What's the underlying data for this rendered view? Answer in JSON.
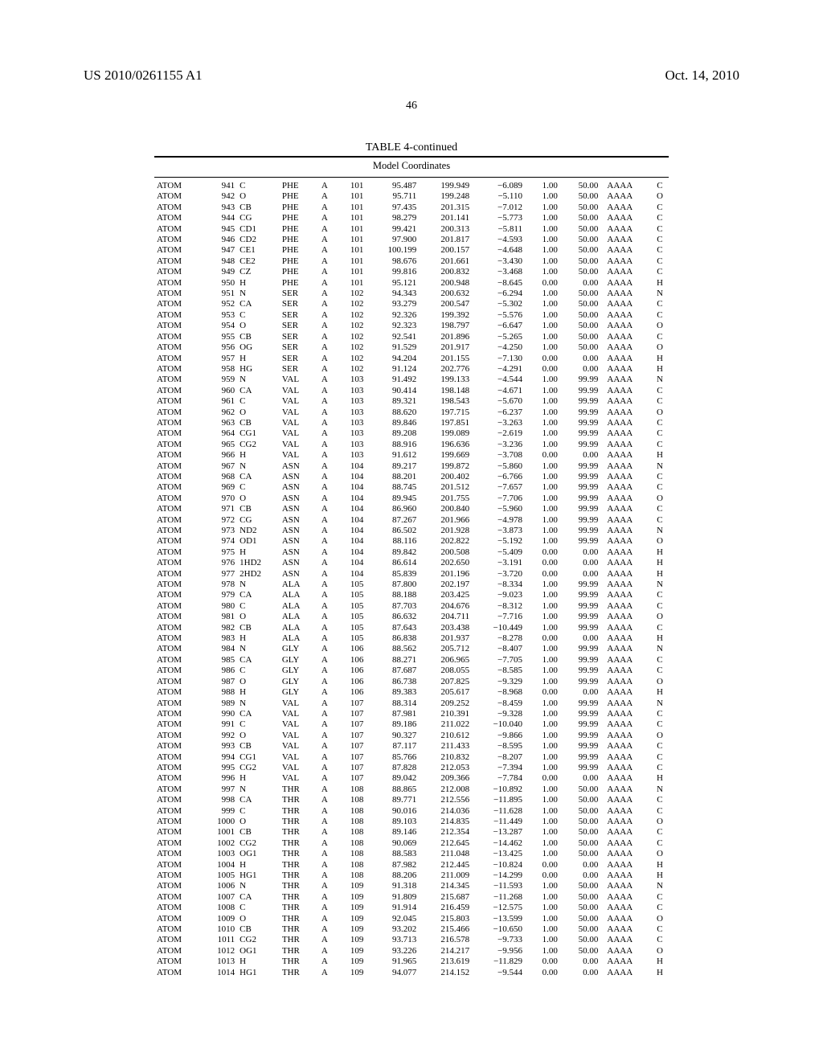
{
  "header": {
    "left": "US 2010/0261155 A1",
    "right": "Oct. 14, 2010"
  },
  "page_number": "46",
  "title": "TABLE 4-continued",
  "subtitle": "Model Coordinates",
  "table": {
    "columns": [
      "record",
      "serial",
      "atom",
      "res",
      "chain",
      "resSeq",
      "x",
      "y",
      "z",
      "occ",
      "temp",
      "seg",
      "elem"
    ],
    "col_classes": [
      "c0",
      "c1",
      "c2",
      "c3",
      "c4",
      "c5",
      "c6",
      "c7",
      "c8",
      "c9",
      "c10",
      "c11",
      "c12"
    ],
    "rows": [
      [
        "ATOM",
        "941",
        "C",
        "PHE",
        "A",
        "101",
        "95.487",
        "199.949",
        "−6.089",
        "1.00",
        "50.00",
        "AAAA",
        "C"
      ],
      [
        "ATOM",
        "942",
        "O",
        "PHE",
        "A",
        "101",
        "95.711",
        "199.248",
        "−5.110",
        "1.00",
        "50.00",
        "AAAA",
        "O"
      ],
      [
        "ATOM",
        "943",
        "CB",
        "PHE",
        "A",
        "101",
        "97.435",
        "201.315",
        "−7.012",
        "1.00",
        "50.00",
        "AAAA",
        "C"
      ],
      [
        "ATOM",
        "944",
        "CG",
        "PHE",
        "A",
        "101",
        "98.279",
        "201.141",
        "−5.773",
        "1.00",
        "50.00",
        "AAAA",
        "C"
      ],
      [
        "ATOM",
        "945",
        "CD1",
        "PHE",
        "A",
        "101",
        "99.421",
        "200.313",
        "−5.811",
        "1.00",
        "50.00",
        "AAAA",
        "C"
      ],
      [
        "ATOM",
        "946",
        "CD2",
        "PHE",
        "A",
        "101",
        "97.900",
        "201.817",
        "−4.593",
        "1.00",
        "50.00",
        "AAAA",
        "C"
      ],
      [
        "ATOM",
        "947",
        "CE1",
        "PHE",
        "A",
        "101",
        "100.199",
        "200.157",
        "−4.648",
        "1.00",
        "50.00",
        "AAAA",
        "C"
      ],
      [
        "ATOM",
        "948",
        "CE2",
        "PHE",
        "A",
        "101",
        "98.676",
        "201.661",
        "−3.430",
        "1.00",
        "50.00",
        "AAAA",
        "C"
      ],
      [
        "ATOM",
        "949",
        "CZ",
        "PHE",
        "A",
        "101",
        "99.816",
        "200.832",
        "−3.468",
        "1.00",
        "50.00",
        "AAAA",
        "C"
      ],
      [
        "ATOM",
        "950",
        "H",
        "PHE",
        "A",
        "101",
        "95.121",
        "200.948",
        "−8.645",
        "0.00",
        "0.00",
        "AAAA",
        "H"
      ],
      [
        "ATOM",
        "951",
        "N",
        "SER",
        "A",
        "102",
        "94.343",
        "200.632",
        "−6.294",
        "1.00",
        "50.00",
        "AAAA",
        "N"
      ],
      [
        "ATOM",
        "952",
        "CA",
        "SER",
        "A",
        "102",
        "93.279",
        "200.547",
        "−5.302",
        "1.00",
        "50.00",
        "AAAA",
        "C"
      ],
      [
        "ATOM",
        "953",
        "C",
        "SER",
        "A",
        "102",
        "92.326",
        "199.392",
        "−5.576",
        "1.00",
        "50.00",
        "AAAA",
        "C"
      ],
      [
        "ATOM",
        "954",
        "O",
        "SER",
        "A",
        "102",
        "92.323",
        "198.797",
        "−6.647",
        "1.00",
        "50.00",
        "AAAA",
        "O"
      ],
      [
        "ATOM",
        "955",
        "CB",
        "SER",
        "A",
        "102",
        "92.541",
        "201.896",
        "−5.265",
        "1.00",
        "50.00",
        "AAAA",
        "C"
      ],
      [
        "ATOM",
        "956",
        "OG",
        "SER",
        "A",
        "102",
        "91.529",
        "201.917",
        "−4.250",
        "1.00",
        "50.00",
        "AAAA",
        "O"
      ],
      [
        "ATOM",
        "957",
        "H",
        "SER",
        "A",
        "102",
        "94.204",
        "201.155",
        "−7.130",
        "0.00",
        "0.00",
        "AAAA",
        "H"
      ],
      [
        "ATOM",
        "958",
        "HG",
        "SER",
        "A",
        "102",
        "91.124",
        "202.776",
        "−4.291",
        "0.00",
        "0.00",
        "AAAA",
        "H"
      ],
      [
        "ATOM",
        "959",
        "N",
        "VAL",
        "A",
        "103",
        "91.492",
        "199.133",
        "−4.544",
        "1.00",
        "99.99",
        "AAAA",
        "N"
      ],
      [
        "ATOM",
        "960",
        "CA",
        "VAL",
        "A",
        "103",
        "90.414",
        "198.148",
        "−4.671",
        "1.00",
        "99.99",
        "AAAA",
        "C"
      ],
      [
        "ATOM",
        "961",
        "C",
        "VAL",
        "A",
        "103",
        "89.321",
        "198.543",
        "−5.670",
        "1.00",
        "99.99",
        "AAAA",
        "C"
      ],
      [
        "ATOM",
        "962",
        "O",
        "VAL",
        "A",
        "103",
        "88.620",
        "197.715",
        "−6.237",
        "1.00",
        "99.99",
        "AAAA",
        "O"
      ],
      [
        "ATOM",
        "963",
        "CB",
        "VAL",
        "A",
        "103",
        "89.846",
        "197.851",
        "−3.263",
        "1.00",
        "99.99",
        "AAAA",
        "C"
      ],
      [
        "ATOM",
        "964",
        "CG1",
        "VAL",
        "A",
        "103",
        "89.208",
        "199.089",
        "−2.619",
        "1.00",
        "99.99",
        "AAAA",
        "C"
      ],
      [
        "ATOM",
        "965",
        "CG2",
        "VAL",
        "A",
        "103",
        "88.916",
        "196.636",
        "−3.236",
        "1.00",
        "99.99",
        "AAAA",
        "C"
      ],
      [
        "ATOM",
        "966",
        "H",
        "VAL",
        "A",
        "103",
        "91.612",
        "199.669",
        "−3.708",
        "0.00",
        "0.00",
        "AAAA",
        "H"
      ],
      [
        "ATOM",
        "967",
        "N",
        "ASN",
        "A",
        "104",
        "89.217",
        "199.872",
        "−5.860",
        "1.00",
        "99.99",
        "AAAA",
        "N"
      ],
      [
        "ATOM",
        "968",
        "CA",
        "ASN",
        "A",
        "104",
        "88.201",
        "200.402",
        "−6.766",
        "1.00",
        "99.99",
        "AAAA",
        "C"
      ],
      [
        "ATOM",
        "969",
        "C",
        "ASN",
        "A",
        "104",
        "88.745",
        "201.512",
        "−7.657",
        "1.00",
        "99.99",
        "AAAA",
        "C"
      ],
      [
        "ATOM",
        "970",
        "O",
        "ASN",
        "A",
        "104",
        "89.945",
        "201.755",
        "−7.706",
        "1.00",
        "99.99",
        "AAAA",
        "O"
      ],
      [
        "ATOM",
        "971",
        "CB",
        "ASN",
        "A",
        "104",
        "86.960",
        "200.840",
        "−5.960",
        "1.00",
        "99.99",
        "AAAA",
        "C"
      ],
      [
        "ATOM",
        "972",
        "CG",
        "ASN",
        "A",
        "104",
        "87.267",
        "201.966",
        "−4.978",
        "1.00",
        "99.99",
        "AAAA",
        "C"
      ],
      [
        "ATOM",
        "973",
        "ND2",
        "ASN",
        "A",
        "104",
        "86.502",
        "201.928",
        "−3.873",
        "1.00",
        "99.99",
        "AAAA",
        "N"
      ],
      [
        "ATOM",
        "974",
        "OD1",
        "ASN",
        "A",
        "104",
        "88.116",
        "202.822",
        "−5.192",
        "1.00",
        "99.99",
        "AAAA",
        "O"
      ],
      [
        "ATOM",
        "975",
        "H",
        "ASN",
        "A",
        "104",
        "89.842",
        "200.508",
        "−5.409",
        "0.00",
        "0.00",
        "AAAA",
        "H"
      ],
      [
        "ATOM",
        "976",
        "1HD2",
        "ASN",
        "A",
        "104",
        "86.614",
        "202.650",
        "−3.191",
        "0.00",
        "0.00",
        "AAAA",
        "H"
      ],
      [
        "ATOM",
        "977",
        "2HD2",
        "ASN",
        "A",
        "104",
        "85.839",
        "201.196",
        "−3.720",
        "0.00",
        "0.00",
        "AAAA",
        "H"
      ],
      [
        "ATOM",
        "978",
        "N",
        "ALA",
        "A",
        "105",
        "87.800",
        "202.197",
        "−8.334",
        "1.00",
        "99.99",
        "AAAA",
        "N"
      ],
      [
        "ATOM",
        "979",
        "CA",
        "ALA",
        "A",
        "105",
        "88.188",
        "203.425",
        "−9.023",
        "1.00",
        "99.99",
        "AAAA",
        "C"
      ],
      [
        "ATOM",
        "980",
        "C",
        "ALA",
        "A",
        "105",
        "87.703",
        "204.676",
        "−8.312",
        "1.00",
        "99.99",
        "AAAA",
        "C"
      ],
      [
        "ATOM",
        "981",
        "O",
        "ALA",
        "A",
        "105",
        "86.632",
        "204.711",
        "−7.716",
        "1.00",
        "99.99",
        "AAAA",
        "O"
      ],
      [
        "ATOM",
        "982",
        "CB",
        "ALA",
        "A",
        "105",
        "87.643",
        "203.438",
        "−10.449",
        "1.00",
        "99.99",
        "AAAA",
        "C"
      ],
      [
        "ATOM",
        "983",
        "H",
        "ALA",
        "A",
        "105",
        "86.838",
        "201.937",
        "−8.278",
        "0.00",
        "0.00",
        "AAAA",
        "H"
      ],
      [
        "ATOM",
        "984",
        "N",
        "GLY",
        "A",
        "106",
        "88.562",
        "205.712",
        "−8.407",
        "1.00",
        "99.99",
        "AAAA",
        "N"
      ],
      [
        "ATOM",
        "985",
        "CA",
        "GLY",
        "A",
        "106",
        "88.271",
        "206.965",
        "−7.705",
        "1.00",
        "99.99",
        "AAAA",
        "C"
      ],
      [
        "ATOM",
        "986",
        "C",
        "GLY",
        "A",
        "106",
        "87.687",
        "208.055",
        "−8.585",
        "1.00",
        "99.99",
        "AAAA",
        "C"
      ],
      [
        "ATOM",
        "987",
        "O",
        "GLY",
        "A",
        "106",
        "86.738",
        "207.825",
        "−9.329",
        "1.00",
        "99.99",
        "AAAA",
        "O"
      ],
      [
        "ATOM",
        "988",
        "H",
        "GLY",
        "A",
        "106",
        "89.383",
        "205.617",
        "−8.968",
        "0.00",
        "0.00",
        "AAAA",
        "H"
      ],
      [
        "ATOM",
        "989",
        "N",
        "VAL",
        "A",
        "107",
        "88.314",
        "209.252",
        "−8.459",
        "1.00",
        "99.99",
        "AAAA",
        "N"
      ],
      [
        "ATOM",
        "990",
        "CA",
        "VAL",
        "A",
        "107",
        "87.981",
        "210.391",
        "−9.328",
        "1.00",
        "99.99",
        "AAAA",
        "C"
      ],
      [
        "ATOM",
        "991",
        "C",
        "VAL",
        "A",
        "107",
        "89.186",
        "211.022",
        "−10.040",
        "1.00",
        "99.99",
        "AAAA",
        "C"
      ],
      [
        "ATOM",
        "992",
        "O",
        "VAL",
        "A",
        "107",
        "90.327",
        "210.612",
        "−9.866",
        "1.00",
        "99.99",
        "AAAA",
        "O"
      ],
      [
        "ATOM",
        "993",
        "CB",
        "VAL",
        "A",
        "107",
        "87.117",
        "211.433",
        "−8.595",
        "1.00",
        "99.99",
        "AAAA",
        "C"
      ],
      [
        "ATOM",
        "994",
        "CG1",
        "VAL",
        "A",
        "107",
        "85.766",
        "210.832",
        "−8.207",
        "1.00",
        "99.99",
        "AAAA",
        "C"
      ],
      [
        "ATOM",
        "995",
        "CG2",
        "VAL",
        "A",
        "107",
        "87.828",
        "212.053",
        "−7.394",
        "1.00",
        "99.99",
        "AAAA",
        "C"
      ],
      [
        "ATOM",
        "996",
        "H",
        "VAL",
        "A",
        "107",
        "89.042",
        "209.366",
        "−7.784",
        "0.00",
        "0.00",
        "AAAA",
        "H"
      ],
      [
        "ATOM",
        "997",
        "N",
        "THR",
        "A",
        "108",
        "88.865",
        "212.008",
        "−10.892",
        "1.00",
        "50.00",
        "AAAA",
        "N"
      ],
      [
        "ATOM",
        "998",
        "CA",
        "THR",
        "A",
        "108",
        "89.771",
        "212.556",
        "−11.895",
        "1.00",
        "50.00",
        "AAAA",
        "C"
      ],
      [
        "ATOM",
        "999",
        "C",
        "THR",
        "A",
        "108",
        "90.016",
        "214.036",
        "−11.628",
        "1.00",
        "50.00",
        "AAAA",
        "C"
      ],
      [
        "ATOM",
        "1000",
        "O",
        "THR",
        "A",
        "108",
        "89.103",
        "214.835",
        "−11.449",
        "1.00",
        "50.00",
        "AAAA",
        "O"
      ],
      [
        "ATOM",
        "1001",
        "CB",
        "THR",
        "A",
        "108",
        "89.146",
        "212.354",
        "−13.287",
        "1.00",
        "50.00",
        "AAAA",
        "C"
      ],
      [
        "ATOM",
        "1002",
        "CG2",
        "THR",
        "A",
        "108",
        "90.069",
        "212.645",
        "−14.462",
        "1.00",
        "50.00",
        "AAAA",
        "C"
      ],
      [
        "ATOM",
        "1003",
        "OG1",
        "THR",
        "A",
        "108",
        "88.583",
        "211.048",
        "−13.425",
        "1.00",
        "50.00",
        "AAAA",
        "O"
      ],
      [
        "ATOM",
        "1004",
        "H",
        "THR",
        "A",
        "108",
        "87.982",
        "212.445",
        "−10.824",
        "0.00",
        "0.00",
        "AAAA",
        "H"
      ],
      [
        "ATOM",
        "1005",
        "HG1",
        "THR",
        "A",
        "108",
        "88.206",
        "211.009",
        "−14.299",
        "0.00",
        "0.00",
        "AAAA",
        "H"
      ],
      [
        "ATOM",
        "1006",
        "N",
        "THR",
        "A",
        "109",
        "91.318",
        "214.345",
        "−11.593",
        "1.00",
        "50.00",
        "AAAA",
        "N"
      ],
      [
        "ATOM",
        "1007",
        "CA",
        "THR",
        "A",
        "109",
        "91.809",
        "215.687",
        "−11.268",
        "1.00",
        "50.00",
        "AAAA",
        "C"
      ],
      [
        "ATOM",
        "1008",
        "C",
        "THR",
        "A",
        "109",
        "91.914",
        "216.459",
        "−12.575",
        "1.00",
        "50.00",
        "AAAA",
        "C"
      ],
      [
        "ATOM",
        "1009",
        "O",
        "THR",
        "A",
        "109",
        "92.045",
        "215.803",
        "−13.599",
        "1.00",
        "50.00",
        "AAAA",
        "O"
      ],
      [
        "ATOM",
        "1010",
        "CB",
        "THR",
        "A",
        "109",
        "93.202",
        "215.466",
        "−10.650",
        "1.00",
        "50.00",
        "AAAA",
        "C"
      ],
      [
        "ATOM",
        "1011",
        "CG2",
        "THR",
        "A",
        "109",
        "93.713",
        "216.578",
        "−9.733",
        "1.00",
        "50.00",
        "AAAA",
        "C"
      ],
      [
        "ATOM",
        "1012",
        "OG1",
        "THR",
        "A",
        "109",
        "93.226",
        "214.217",
        "−9.956",
        "1.00",
        "50.00",
        "AAAA",
        "O"
      ],
      [
        "ATOM",
        "1013",
        "H",
        "THR",
        "A",
        "109",
        "91.965",
        "213.619",
        "−11.829",
        "0.00",
        "0.00",
        "AAAA",
        "H"
      ],
      [
        "ATOM",
        "1014",
        "HG1",
        "THR",
        "A",
        "109",
        "94.077",
        "214.152",
        "−9.544",
        "0.00",
        "0.00",
        "AAAA",
        "H"
      ]
    ]
  }
}
